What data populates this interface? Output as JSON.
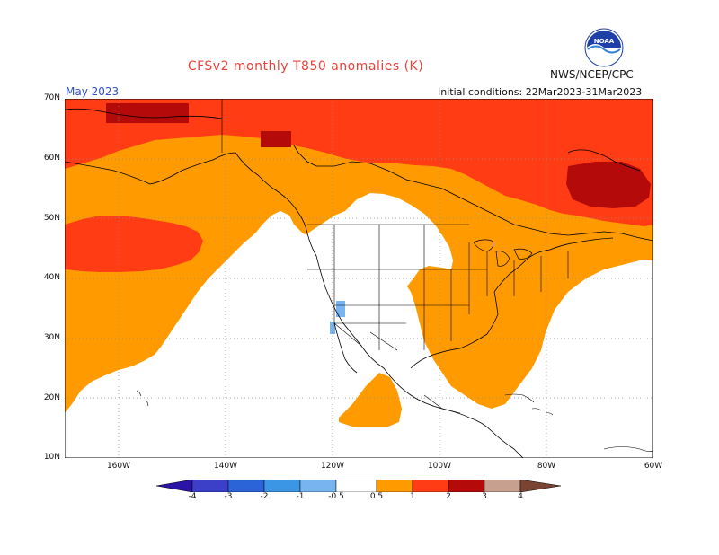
{
  "title": "CFSv2 monthly T850 anomalies (K)",
  "forecast_month": "May 2023",
  "agency": "NWS/NCEP/CPC",
  "initial_conditions": "Initial conditions: 22Mar2023-31Mar2023",
  "logo_label": "NOAA",
  "map": {
    "lat_labels": [
      "70N",
      "60N",
      "50N",
      "40N",
      "30N",
      "20N",
      "10N"
    ],
    "lon_labels": [
      "160W",
      "140W",
      "120W",
      "100W",
      "80W",
      "60W"
    ],
    "lat_range": [
      10,
      70
    ],
    "lon_range": [
      -170,
      -60
    ],
    "grid": "dotted",
    "dominant_anomaly_categories": [
      "0.5 to 1",
      "1 to 2",
      "2 to 3"
    ]
  },
  "colorbar": {
    "tick_labels": [
      "-4",
      "-3",
      "-2",
      "-1",
      "-0.5",
      "0.5",
      "1",
      "2",
      "3",
      "4"
    ],
    "colors": [
      "#2a14a8",
      "#3c50d0",
      "#2a78d8",
      "#3c96e6",
      "#78b4f0",
      "#ffffff",
      "#ff9b00",
      "#ff3c14",
      "#b40a0a",
      "#c8a090",
      "#7a4432"
    ]
  },
  "colors": {
    "orange": "#ff9b00",
    "red_orange": "#ff3c14",
    "dark_red": "#b40a0a",
    "light_blue": "#78b4f0",
    "title_red": "#e8403a",
    "month_blue": "#2f50c8"
  }
}
